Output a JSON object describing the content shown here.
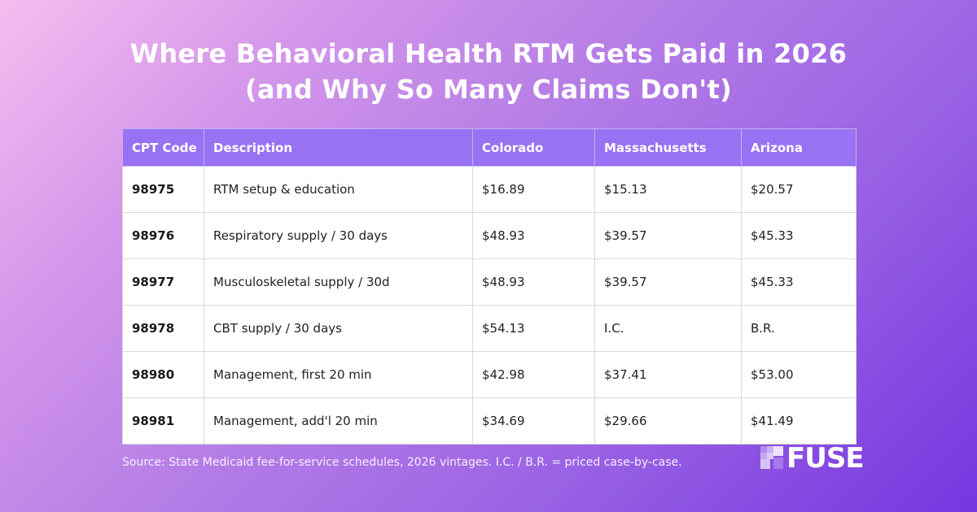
{
  "title": {
    "line1": "Where Behavioral Health RTM Gets Paid in 2026",
    "line2": "(and Why So Many Claims Don't)"
  },
  "table": {
    "headers": [
      "CPT Code",
      "Description",
      "Colorado",
      "Massachusetts",
      "Arizona"
    ],
    "rows": [
      [
        "98975",
        "RTM setup & education",
        "$16.89",
        "$15.13",
        "$20.57"
      ],
      [
        "98976",
        "Respiratory supply / 30 days",
        "$48.93",
        "$39.57",
        "$45.33"
      ],
      [
        "98977",
        "Musculoskeletal supply / 30d",
        "$48.93",
        "$39.57",
        "$45.33"
      ],
      [
        "98978",
        "CBT supply / 30 days",
        "$54.13",
        "I.C.",
        "B.R."
      ],
      [
        "98980",
        "Management, first 20 min",
        "$42.98",
        "$37.41",
        "$53.00"
      ],
      [
        "98981",
        "Management, add'l 20 min",
        "$34.69",
        "$29.66",
        "$41.49"
      ]
    ]
  },
  "footer": {
    "source": "Source: State Medicaid fee-for-service schedules, 2026 vintages. I.C. / B.R. = priced case-by-case."
  },
  "logo": {
    "text": "FUSE",
    "icon": "pixel-square-logo-icon"
  },
  "colors": {
    "header_bg": "#9872f2",
    "gradient_start": "#f6bdf0",
    "gradient_end": "#7536e0"
  }
}
